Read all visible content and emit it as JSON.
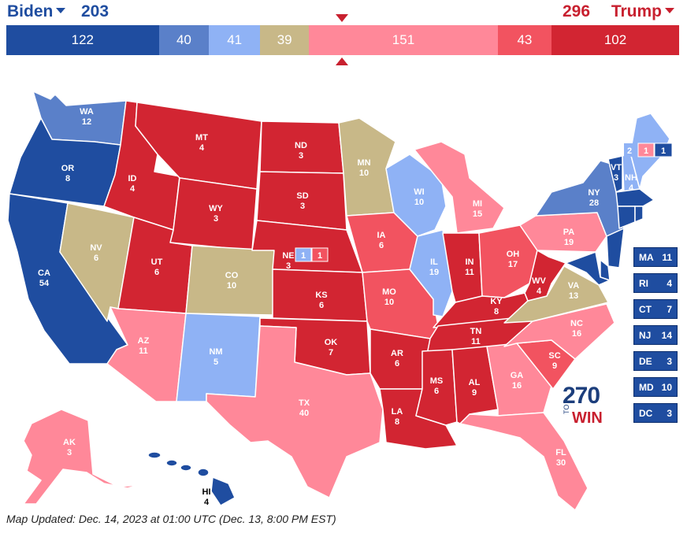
{
  "header": {
    "dem_name": "Biden",
    "dem_total": "203",
    "rep_name": "Trump",
    "rep_total": "296"
  },
  "colors": {
    "safe_dem": "#1f4da0",
    "likely_dem": "#5a80c9",
    "lean_dem": "#8fb2f5",
    "tossup": "#c8b888",
    "lean_rep": "#ff8899",
    "likely_rep": "#f25360",
    "safe_rep": "#d22532"
  },
  "bar": [
    {
      "value": "122",
      "rating": "safe_dem",
      "width": 122
    },
    {
      "value": "40",
      "rating": "likely_dem",
      "width": 40
    },
    {
      "value": "41",
      "rating": "lean_dem",
      "width": 41
    },
    {
      "value": "39",
      "rating": "tossup",
      "width": 39
    },
    {
      "value": "151",
      "rating": "lean_rep",
      "width": 151
    },
    {
      "value": "43",
      "rating": "likely_rep",
      "width": 43
    },
    {
      "value": "102",
      "rating": "safe_rep",
      "width": 102
    }
  ],
  "states": [
    {
      "abbr": "WA",
      "ev": "12",
      "rating": "likely_dem"
    },
    {
      "abbr": "OR",
      "ev": "8",
      "rating": "safe_dem"
    },
    {
      "abbr": "CA",
      "ev": "54",
      "rating": "safe_dem"
    },
    {
      "abbr": "NV",
      "ev": "6",
      "rating": "tossup"
    },
    {
      "abbr": "ID",
      "ev": "4",
      "rating": "safe_rep"
    },
    {
      "abbr": "MT",
      "ev": "4",
      "rating": "safe_rep"
    },
    {
      "abbr": "WY",
      "ev": "3",
      "rating": "safe_rep"
    },
    {
      "abbr": "UT",
      "ev": "6",
      "rating": "safe_rep"
    },
    {
      "abbr": "AZ",
      "ev": "11",
      "rating": "lean_rep"
    },
    {
      "abbr": "CO",
      "ev": "10",
      "rating": "tossup"
    },
    {
      "abbr": "NM",
      "ev": "5",
      "rating": "lean_dem"
    },
    {
      "abbr": "ND",
      "ev": "3",
      "rating": "safe_rep"
    },
    {
      "abbr": "SD",
      "ev": "3",
      "rating": "safe_rep"
    },
    {
      "abbr": "NE",
      "ev": "3",
      "rating": "safe_rep"
    },
    {
      "abbr": "KS",
      "ev": "6",
      "rating": "safe_rep"
    },
    {
      "abbr": "OK",
      "ev": "7",
      "rating": "safe_rep"
    },
    {
      "abbr": "TX",
      "ev": "40",
      "rating": "lean_rep"
    },
    {
      "abbr": "MN",
      "ev": "10",
      "rating": "tossup"
    },
    {
      "abbr": "IA",
      "ev": "6",
      "rating": "likely_rep"
    },
    {
      "abbr": "MO",
      "ev": "10",
      "rating": "likely_rep"
    },
    {
      "abbr": "AR",
      "ev": "6",
      "rating": "safe_rep"
    },
    {
      "abbr": "LA",
      "ev": "8",
      "rating": "safe_rep"
    },
    {
      "abbr": "WI",
      "ev": "10",
      "rating": "lean_dem"
    },
    {
      "abbr": "IL",
      "ev": "19",
      "rating": "lean_dem"
    },
    {
      "abbr": "MI",
      "ev": "15",
      "rating": "lean_rep"
    },
    {
      "abbr": "IN",
      "ev": "11",
      "rating": "safe_rep"
    },
    {
      "abbr": "OH",
      "ev": "17",
      "rating": "likely_rep"
    },
    {
      "abbr": "KY",
      "ev": "8",
      "rating": "safe_rep"
    },
    {
      "abbr": "TN",
      "ev": "11",
      "rating": "safe_rep"
    },
    {
      "abbr": "MS",
      "ev": "6",
      "rating": "safe_rep"
    },
    {
      "abbr": "AL",
      "ev": "9",
      "rating": "safe_rep"
    },
    {
      "abbr": "GA",
      "ev": "16",
      "rating": "lean_rep"
    },
    {
      "abbr": "FL",
      "ev": "30",
      "rating": "lean_rep"
    },
    {
      "abbr": "SC",
      "ev": "9",
      "rating": "likely_rep"
    },
    {
      "abbr": "NC",
      "ev": "16",
      "rating": "lean_rep"
    },
    {
      "abbr": "VA",
      "ev": "13",
      "rating": "tossup"
    },
    {
      "abbr": "WV",
      "ev": "4",
      "rating": "safe_rep"
    },
    {
      "abbr": "PA",
      "ev": "19",
      "rating": "lean_rep"
    },
    {
      "abbr": "NY",
      "ev": "28",
      "rating": "likely_dem"
    },
    {
      "abbr": "VT",
      "ev": "3",
      "rating": "safe_dem"
    },
    {
      "abbr": "NH",
      "ev": "4",
      "rating": "lean_dem"
    },
    {
      "abbr": "ME",
      "ev": "",
      "rating": "lean_dem"
    },
    {
      "abbr": "AK",
      "ev": "3",
      "rating": "lean_rep"
    },
    {
      "abbr": "HI",
      "ev": "4",
      "rating": "safe_dem"
    }
  ],
  "districts": {
    "me": {
      "label": "2",
      "d2": "1",
      "d1": "1"
    },
    "ne": {
      "d1": "1",
      "d2": "1"
    }
  },
  "small_states": [
    {
      "abbr": "MA",
      "ev": "11"
    },
    {
      "abbr": "RI",
      "ev": "4"
    },
    {
      "abbr": "CT",
      "ev": "7"
    },
    {
      "abbr": "NJ",
      "ev": "14"
    },
    {
      "abbr": "DE",
      "ev": "3"
    },
    {
      "abbr": "MD",
      "ev": "10"
    },
    {
      "abbr": "DC",
      "ev": "3"
    }
  ],
  "logo": {
    "num": "270",
    "to": "TO",
    "win": "WIN"
  },
  "footer": {
    "updated": "Map Updated: Dec. 14, 2023 at 01:00 UTC (Dec. 13, 8:00 PM EST)"
  }
}
